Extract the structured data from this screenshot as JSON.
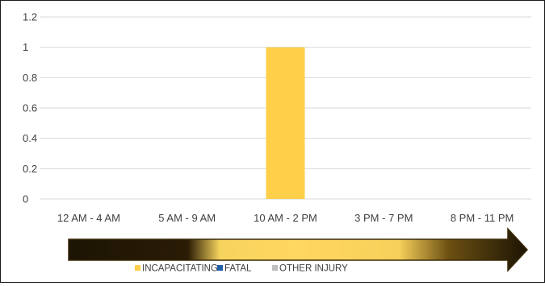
{
  "chart_data": {
    "type": "bar",
    "categories": [
      "12 AM - 4 AM",
      "5 AM - 9 AM",
      "10 AM - 2 PM",
      "3 PM - 7 PM",
      "8 PM - 11 PM"
    ],
    "series": [
      {
        "name": "INCAPACITATING",
        "values": [
          0,
          0,
          1,
          0,
          0
        ],
        "color": "#FFCF4A"
      },
      {
        "name": "FATAL",
        "values": [
          0,
          0,
          0,
          0,
          0
        ],
        "color": "#1F5FA8"
      },
      {
        "name": "OTHER INJURY",
        "values": [
          0,
          0,
          0,
          0,
          0
        ],
        "color": "#BFBFBF"
      }
    ],
    "y_ticks": [
      "0",
      "0.2",
      "0.4",
      "0.6",
      "0.8",
      "1",
      "1.2"
    ],
    "ylim": [
      0,
      1.2
    ],
    "grid": true,
    "legend_position": "bottom",
    "decoration": "gradient arrow pointing right beneath the time categories",
    "title": "",
    "xlabel": "",
    "ylabel": ""
  }
}
